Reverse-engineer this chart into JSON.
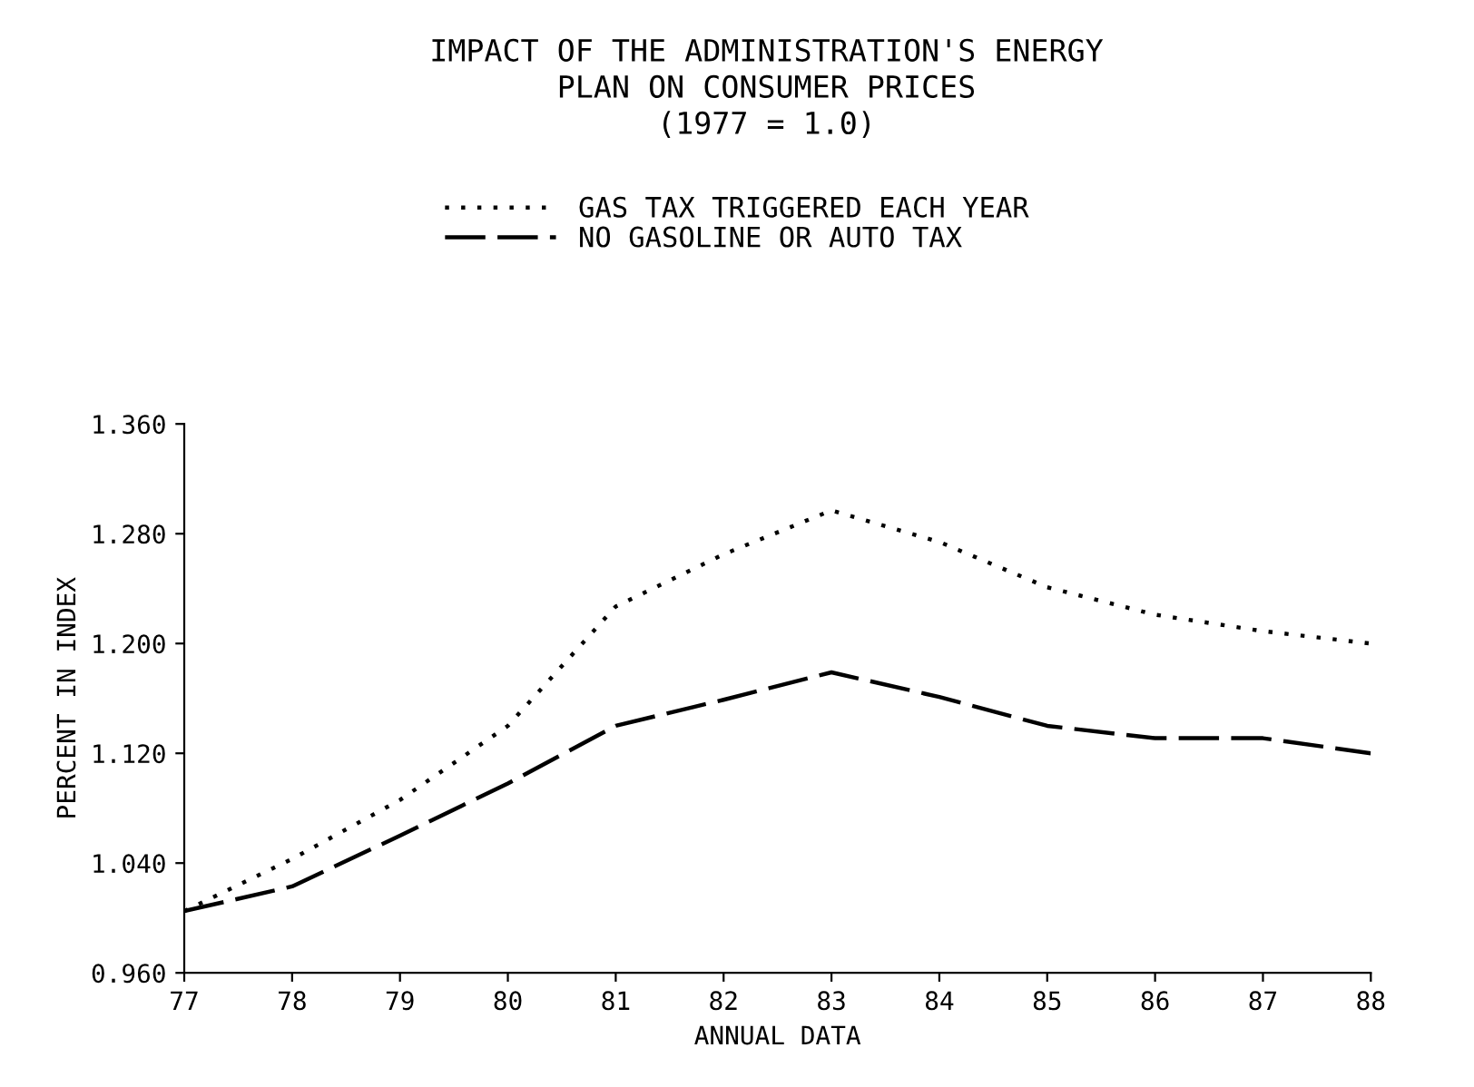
{
  "chart_data": {
    "type": "line",
    "title": "IMPACT OF THE ADMINISTRATION'S ENERGY\nPLAN ON CONSUMER PRICES\n(1977 = 1.0)",
    "xlabel": "ANNUAL DATA",
    "ylabel": "PERCENT IN INDEX",
    "categories": [
      "77",
      "78",
      "79",
      "80",
      "81",
      "82",
      "83",
      "84",
      "85",
      "86",
      "87",
      "88"
    ],
    "series": [
      {
        "name": "GAS TAX TRIGGERED EACH YEAR",
        "color": "#000000",
        "line_style": "dotted",
        "values": [
          1.005,
          1.043,
          1.086,
          1.14,
          1.227,
          1.265,
          1.297,
          1.274,
          1.241,
          1.221,
          1.209,
          1.2
        ]
      },
      {
        "name": "NO GASOLINE OR AUTO TAX",
        "color": "#000000",
        "line_style": "dashed",
        "values": [
          1.005,
          1.023,
          1.06,
          1.098,
          1.14,
          1.159,
          1.179,
          1.161,
          1.14,
          1.131,
          1.131,
          1.12
        ]
      }
    ],
    "ylim": [
      0.96,
      1.36
    ],
    "yticks": [
      {
        "value": 0.96,
        "label": "0.960"
      },
      {
        "value": 1.04,
        "label": "1.040"
      },
      {
        "value": 1.12,
        "label": "1.120"
      },
      {
        "value": 1.2,
        "label": "1.200"
      },
      {
        "value": 1.28,
        "label": "1.280"
      },
      {
        "value": 1.36,
        "label": "1.360"
      }
    ],
    "grid": false,
    "legend": "top"
  }
}
